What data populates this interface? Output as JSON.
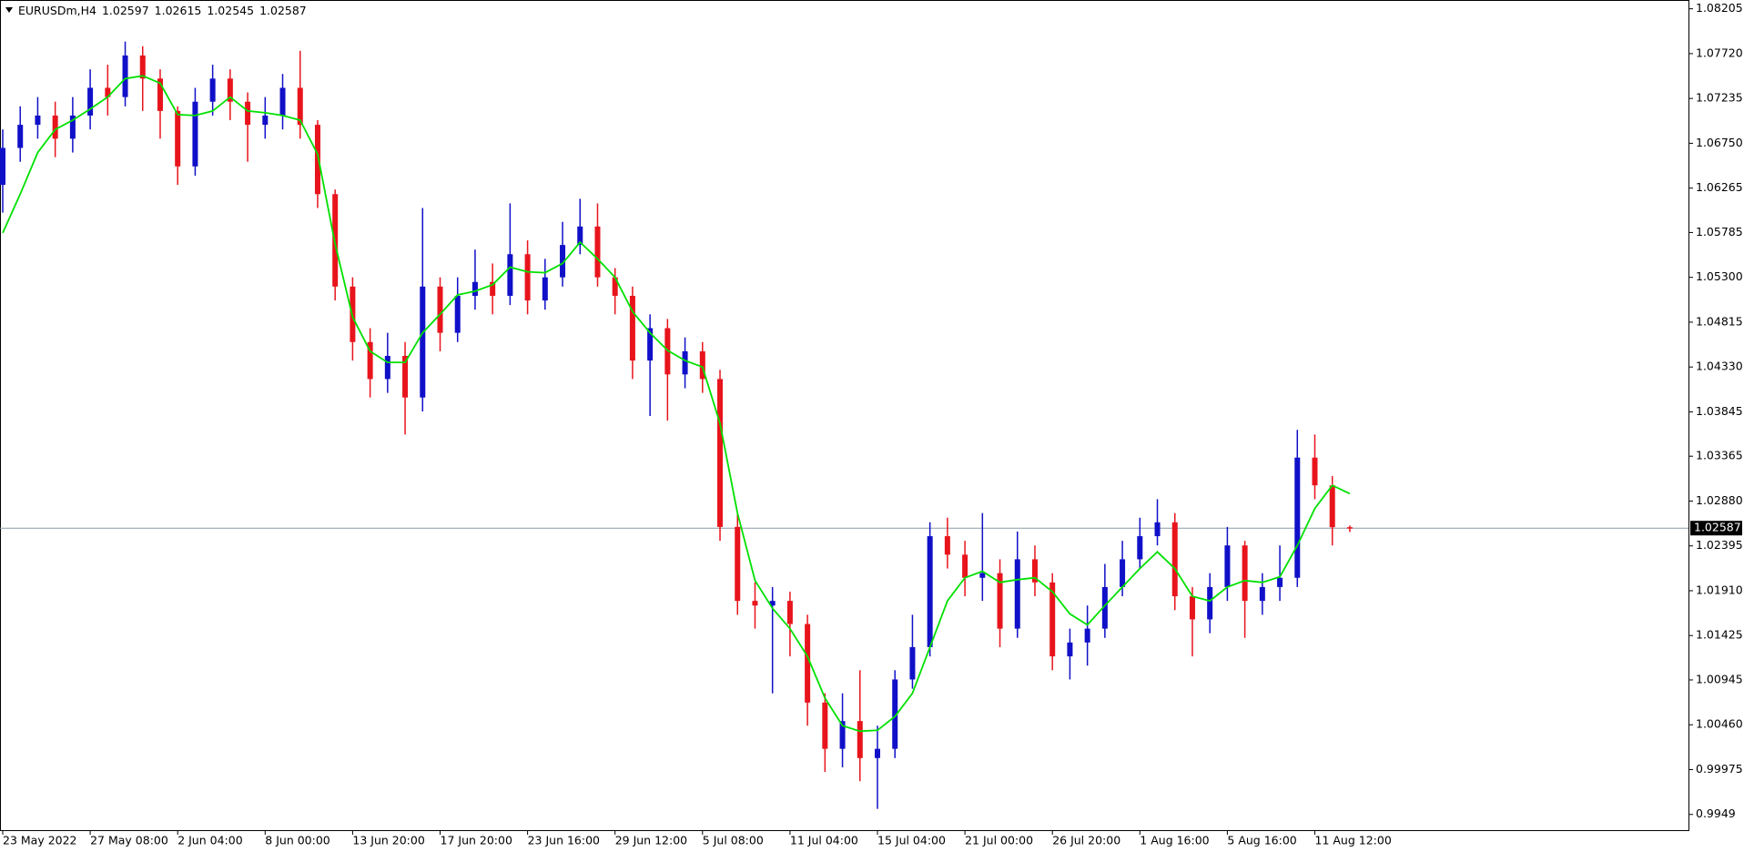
{
  "chart_data": {
    "type": "candlestick",
    "symbol": "EURUSDm,H4",
    "header_ohlc": [
      1.02597,
      1.02615,
      1.02545,
      1.02587
    ],
    "current_price": 1.02587,
    "up_color": "#1010c8",
    "down_color": "#e8141c",
    "categories": [
      "23 May 2022",
      null,
      null,
      null,
      null,
      "27 May 08:00",
      null,
      null,
      null,
      null,
      "2 Jun 04:00",
      null,
      null,
      null,
      null,
      "8 Jun 00:00",
      null,
      null,
      null,
      null,
      "13 Jun 20:00",
      null,
      null,
      null,
      null,
      "17 Jun 20:00",
      null,
      null,
      null,
      null,
      "23 Jun 16:00",
      null,
      null,
      null,
      null,
      "29 Jun 12:00",
      null,
      null,
      null,
      null,
      "5 Jul 08:00",
      null,
      null,
      null,
      null,
      "11 Jul 04:00",
      null,
      null,
      null,
      null,
      "15 Jul 04:00",
      null,
      null,
      null,
      null,
      "21 Jul 00:00",
      null,
      null,
      null,
      null,
      "26 Jul 20:00",
      null,
      null,
      null,
      null,
      "1 Aug 16:00",
      null,
      null,
      null,
      null,
      "5 Aug 16:00",
      null,
      null,
      null,
      null,
      "11 Aug 12:00",
      null,
      null
    ],
    "open": [
      1.063,
      1.067,
      1.0695,
      1.0705,
      1.068,
      1.0705,
      1.0735,
      1.0725,
      1.077,
      1.0745,
      1.071,
      1.065,
      1.072,
      1.0745,
      1.072,
      1.0695,
      1.0705,
      1.0735,
      1.0695,
      1.062,
      1.052,
      1.046,
      1.042,
      1.0445,
      1.04,
      1.052,
      1.047,
      1.051,
      1.0525,
      1.051,
      1.0555,
      1.0505,
      1.053,
      1.0565,
      1.0585,
      1.053,
      1.051,
      1.044,
      1.0475,
      1.0425,
      1.045,
      1.042,
      1.026,
      1.018,
      1.0175,
      1.018,
      1.0155,
      1.007,
      1.002,
      1.005,
      1.001,
      1.002,
      1.0095,
      1.013,
      1.025,
      1.023,
      1.0205,
      1.021,
      1.015,
      1.0225,
      1.02,
      1.012,
      1.0135,
      1.015,
      1.0195,
      1.0225,
      1.025,
      1.0265,
      1.0185,
      1.016,
      1.0195,
      1.024,
      1.018,
      1.0195,
      1.0205,
      1.0335,
      1.0305,
      1.02597
    ],
    "high": [
      1.069,
      1.0715,
      1.0725,
      1.072,
      1.0725,
      1.0755,
      1.076,
      1.0785,
      1.078,
      1.0755,
      1.0715,
      1.0735,
      1.076,
      1.0755,
      1.073,
      1.0725,
      1.075,
      1.0775,
      1.07,
      1.0625,
      1.053,
      1.0475,
      1.047,
      1.046,
      1.0605,
      1.053,
      1.053,
      1.056,
      1.0545,
      1.061,
      1.057,
      1.055,
      1.059,
      1.0615,
      1.061,
      1.054,
      1.052,
      1.049,
      1.0485,
      1.0465,
      1.046,
      1.043,
      1.0275,
      1.02,
      1.0195,
      1.019,
      1.0165,
      1.008,
      1.008,
      1.0105,
      1.0045,
      1.0105,
      1.0165,
      1.0265,
      1.027,
      1.0245,
      1.0275,
      1.0225,
      1.0255,
      1.024,
      1.021,
      1.015,
      1.0175,
      1.022,
      1.0245,
      1.027,
      1.029,
      1.0275,
      1.0195,
      1.021,
      1.026,
      1.0245,
      1.021,
      1.024,
      1.0365,
      1.036,
      1.0315,
      1.02615
    ],
    "low": [
      1.06,
      1.0655,
      1.068,
      1.066,
      1.0665,
      1.069,
      1.0705,
      1.0715,
      1.071,
      1.068,
      1.063,
      1.064,
      1.0705,
      1.07,
      1.0655,
      1.068,
      1.069,
      1.068,
      1.0605,
      1.0505,
      1.044,
      1.04,
      1.0405,
      1.036,
      1.0385,
      1.045,
      1.046,
      1.0495,
      1.049,
      1.05,
      1.049,
      1.0495,
      1.052,
      1.0555,
      1.052,
      1.049,
      1.042,
      1.038,
      1.0375,
      1.041,
      1.0405,
      1.0245,
      1.0165,
      1.015,
      1.008,
      1.012,
      1.0045,
      0.9995,
      1.0,
      0.9985,
      0.9955,
      1.001,
      1.0085,
      1.012,
      1.0215,
      1.0185,
      1.018,
      1.013,
      1.014,
      1.0185,
      1.0105,
      1.0095,
      1.011,
      1.014,
      1.0185,
      1.0215,
      1.024,
      1.017,
      1.012,
      1.0145,
      1.018,
      1.014,
      1.0165,
      1.018,
      1.0195,
      1.029,
      1.024,
      1.02545
    ],
    "close": [
      1.067,
      1.0695,
      1.0705,
      1.068,
      1.0705,
      1.0735,
      1.0725,
      1.077,
      1.0745,
      1.071,
      1.065,
      1.072,
      1.0745,
      1.072,
      1.0695,
      1.0705,
      1.0735,
      1.0695,
      1.062,
      1.052,
      1.046,
      1.042,
      1.0445,
      1.04,
      1.052,
      1.047,
      1.051,
      1.0525,
      1.051,
      1.0555,
      1.0505,
      1.053,
      1.0565,
      1.0585,
      1.053,
      1.051,
      1.044,
      1.0475,
      1.0425,
      1.045,
      1.042,
      1.026,
      1.018,
      1.0175,
      1.018,
      1.0155,
      1.007,
      1.002,
      1.005,
      1.001,
      1.002,
      1.0095,
      1.013,
      1.025,
      1.023,
      1.0205,
      1.021,
      1.015,
      1.0225,
      1.02,
      1.012,
      1.0135,
      1.015,
      1.0195,
      1.0225,
      1.025,
      1.0265,
      1.0185,
      1.016,
      1.0195,
      1.024,
      1.018,
      1.0195,
      1.0205,
      1.0335,
      1.0305,
      1.02597,
      1.02587
    ],
    "ma": {
      "color": "#00e000",
      "values": [
        1.0578,
        1.062,
        1.0665,
        1.069,
        1.07,
        1.0712,
        1.0725,
        1.0745,
        1.0748,
        1.074,
        1.0706,
        1.0705,
        1.071,
        1.0725,
        1.071,
        1.0708,
        1.0705,
        1.07,
        1.0663,
        1.0566,
        1.0487,
        1.045,
        1.0438,
        1.0438,
        1.047,
        1.049,
        1.0511,
        1.0515,
        1.0522,
        1.0541,
        1.0536,
        1.0535,
        1.0545,
        1.0568,
        1.055,
        1.053,
        1.0493,
        1.047,
        1.0451,
        1.044,
        1.0433,
        1.0372,
        1.0275,
        1.0202,
        1.0172,
        1.015,
        1.012,
        1.0075,
        1.0045,
        1.0039,
        1.004,
        1.0055,
        1.008,
        1.013,
        1.018,
        1.0205,
        1.0212,
        1.02,
        1.0203,
        1.0205,
        1.019,
        1.0166,
        1.0154,
        1.0175,
        1.0195,
        1.0215,
        1.0233,
        1.0215,
        1.0185,
        1.018,
        1.0195,
        1.0202,
        1.02,
        1.0206,
        1.024,
        1.028,
        1.0305,
        1.0296
      ]
    },
    "ylim": [
      0.9932,
      1.083
    ],
    "yticks": [
      1.08205,
      {
        "value": 1.0772,
        "label": "1.07720"
      },
      1.07235,
      {
        "value": 1.0675,
        "label": "1.06750"
      },
      1.06265,
      1.05785,
      {
        "value": 1.053,
        "label": "1.05300"
      },
      1.04815,
      {
        "value": 1.0433,
        "label": "1.04330"
      },
      1.03845,
      1.03365,
      {
        "value": 1.0288,
        "label": "1.02880"
      },
      1.02395,
      {
        "value": 1.0191,
        "label": "1.01910"
      },
      1.01425,
      1.00945,
      {
        "value": 1.0046,
        "label": "1.00460"
      },
      0.99975,
      0.9949
    ]
  }
}
